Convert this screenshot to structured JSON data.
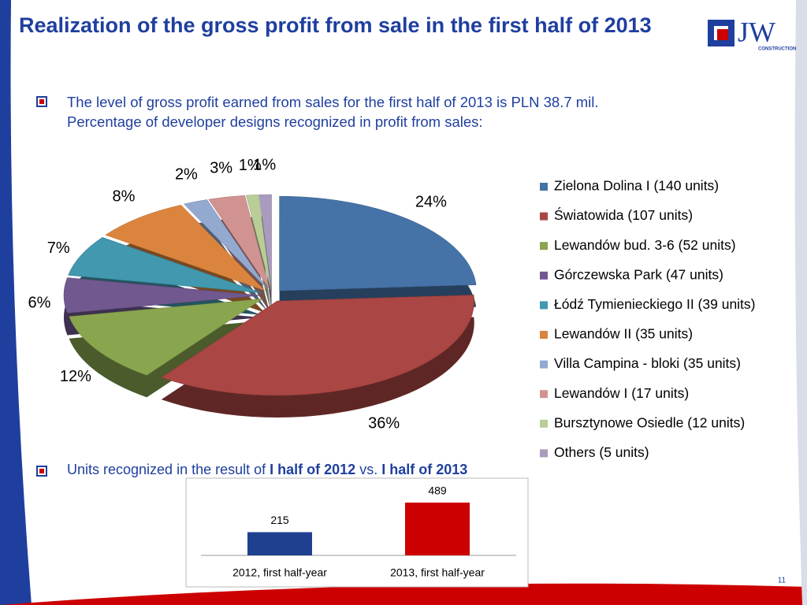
{
  "title": "Realization of the gross profit from sale in the first half of 2013",
  "logo": {
    "text": "JW",
    "subtext": "CONSTRUCTION"
  },
  "bullet_1": [
    "The level of gross profit earned from sales for the first half of 2013 is PLN 38.7 mil.",
    "Percentage of developer designs recognized in profit from sales:"
  ],
  "bullet_2": [
    "Units recognized in the result of ",
    "I half of 2012",
    " vs. ",
    "I half of 2013"
  ],
  "page_number": "11",
  "chart_data": [
    {
      "type": "pie",
      "categories": [
        "Zielona Dolina I (140 units)",
        "Światowida (107 units)",
        "Lewandów bud. 3-6 (52 units)",
        "Górczewska Park (47 units)",
        "Łódź Tymienieckiego II (39 units)",
        "Lewandów II (35 units)",
        "Villa Campina - bloki (35 units)",
        "Lewandów I (17 units)",
        "Bursztynowe Osiedle (12 units)",
        "Others (5 units)"
      ],
      "values": [
        24,
        36,
        12,
        6,
        7,
        8,
        2,
        3,
        1,
        1
      ],
      "value_labels": [
        "24%",
        "36%",
        "12%",
        "6%",
        "7%",
        "8%",
        "2%",
        "3%",
        "1%",
        "1%"
      ],
      "colors": [
        "#4572a7",
        "#aa4643",
        "#89a54e",
        "#71588f",
        "#4198af",
        "#db843d",
        "#93a9cf",
        "#d19392",
        "#b9cd96",
        "#a99bbd"
      ],
      "legend": "right"
    },
    {
      "type": "bar",
      "categories": [
        "2012, first half-year",
        "2013, first half-year"
      ],
      "values": [
        215,
        489
      ],
      "colors": [
        "#1f3f8f",
        "#cc0000"
      ]
    }
  ]
}
